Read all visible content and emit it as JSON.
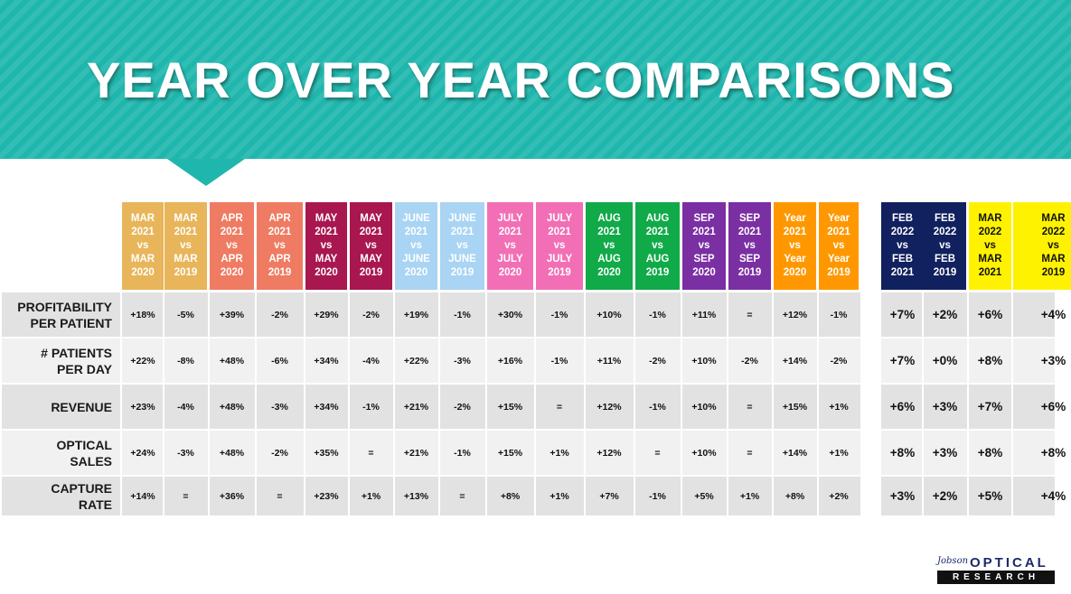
{
  "title": "YEAR OVER YEAR COMPARISONS",
  "columns": [
    {
      "lines": [
        "MAR",
        "2021",
        "vs",
        "MAR",
        "2020"
      ],
      "color": "#e8b55a"
    },
    {
      "lines": [
        "MAR",
        "2021",
        "vs",
        "MAR",
        "2019"
      ],
      "color": "#e8b55a"
    },
    {
      "lines": [
        "APR",
        "2021",
        "vs",
        "APR",
        "2020"
      ],
      "color": "#ef7b63"
    },
    {
      "lines": [
        "APR",
        "2021",
        "vs",
        "APR",
        "2019"
      ],
      "color": "#ef7b63"
    },
    {
      "lines": [
        "MAY",
        "2021",
        "vs",
        "MAY",
        "2020"
      ],
      "color": "#a8174f"
    },
    {
      "lines": [
        "MAY",
        "2021",
        "vs",
        "MAY",
        "2019"
      ],
      "color": "#a8174f"
    },
    {
      "lines": [
        "JUNE",
        "2021",
        "vs",
        "JUNE",
        "2020"
      ],
      "color": "#a9d4f4"
    },
    {
      "lines": [
        "JUNE",
        "2021",
        "vs",
        "JUNE",
        "2019"
      ],
      "color": "#a9d4f4"
    },
    {
      "lines": [
        "JULY",
        "2021",
        "vs",
        "JULY",
        "2020"
      ],
      "color": "#f26fb5"
    },
    {
      "lines": [
        "JULY",
        "2021",
        "vs",
        "JULY",
        "2019"
      ],
      "color": "#f26fb5"
    },
    {
      "lines": [
        "AUG",
        "2021",
        "vs",
        "AUG",
        "2020"
      ],
      "color": "#10aa48"
    },
    {
      "lines": [
        "AUG",
        "2021",
        "vs",
        "AUG",
        "2019"
      ],
      "color": "#10aa48"
    },
    {
      "lines": [
        "SEP",
        "2021",
        "vs",
        "SEP",
        "2020"
      ],
      "color": "#7a2fa3"
    },
    {
      "lines": [
        "SEP",
        "2021",
        "vs",
        "SEP",
        "2019"
      ],
      "color": "#7a2fa3"
    },
    {
      "lines": [
        "Year",
        "2021",
        "vs",
        "Year",
        "2020"
      ],
      "color": "#ff9800"
    },
    {
      "lines": [
        "Year",
        "2021",
        "vs",
        "Year",
        "2019"
      ],
      "color": "#ff9800"
    },
    {
      "lines": [
        "FEB",
        "2022",
        "vs",
        "FEB",
        "2021"
      ],
      "color": "#11205e"
    },
    {
      "lines": [
        "FEB",
        "2022",
        "vs",
        "FEB",
        "2019"
      ],
      "color": "#11205e"
    },
    {
      "lines": [
        "MAR",
        "2022",
        "vs",
        "MAR",
        "2021"
      ],
      "color": "#fff200",
      "dark": true
    },
    {
      "lines": [
        "MAR",
        "2022",
        "vs",
        "MAR",
        "2019"
      ],
      "color": "#fff200",
      "dark": true
    }
  ],
  "rows": [
    {
      "label": [
        "PROFITABILITY",
        "PER PATIENT"
      ],
      "values": [
        "+18%",
        "-5%",
        "+39%",
        "-2%",
        "+29%",
        "-2%",
        "+19%",
        "-1%",
        "+30%",
        "-1%",
        "+10%",
        "-1%",
        "+11%",
        "=",
        "+12%",
        "-1%",
        "+7%",
        "+2%",
        "+6%",
        "+4%"
      ]
    },
    {
      "label": [
        "# PATIENTS",
        "PER DAY"
      ],
      "values": [
        "+22%",
        "-8%",
        "+48%",
        "-6%",
        "+34%",
        "-4%",
        "+22%",
        "-3%",
        "+16%",
        "-1%",
        "+11%",
        "-2%",
        "+10%",
        "-2%",
        "+14%",
        "-2%",
        "+7%",
        "+0%",
        "+8%",
        "+3%"
      ]
    },
    {
      "label": [
        "REVENUE"
      ],
      "values": [
        "+23%",
        "-4%",
        "+48%",
        "-3%",
        "+34%",
        "-1%",
        "+21%",
        "-2%",
        "+15%",
        "=",
        "+12%",
        "-1%",
        "+10%",
        "=",
        "+15%",
        "+1%",
        "+6%",
        "+3%",
        "+7%",
        "+6%"
      ]
    },
    {
      "label": [
        "OPTICAL",
        "SALES"
      ],
      "values": [
        "+24%",
        "-3%",
        "+48%",
        "-2%",
        "+35%",
        "=",
        "+21%",
        "-1%",
        "+15%",
        "+1%",
        "+12%",
        "=",
        "+10%",
        "=",
        "+14%",
        "+1%",
        "+8%",
        "+3%",
        "+8%",
        "+8%"
      ]
    },
    {
      "label": [
        "CAPTURE",
        "RATE"
      ],
      "values": [
        "+14%",
        "=",
        "+36%",
        "=",
        "+23%",
        "+1%",
        "+13%",
        "=",
        "+8%",
        "+1%",
        "+7%",
        "-1%",
        "+5%",
        "+1%",
        "+8%",
        "+2%",
        "+3%",
        "+2%",
        "+5%",
        "+4%"
      ]
    }
  ],
  "logo": {
    "small": "Jobson",
    "brand": "OPTICAL",
    "sub": "RESEARCH"
  }
}
